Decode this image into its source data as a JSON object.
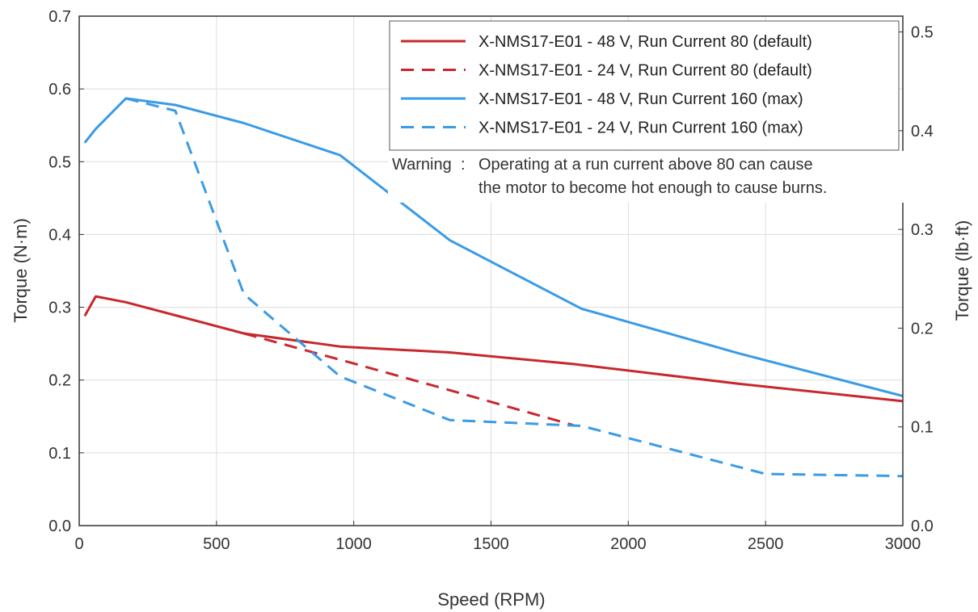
{
  "chart_data": {
    "type": "line",
    "xlabel": "Speed (RPM)",
    "ylabel": "Torque (N·m)",
    "y2label": "Torque (lb·ft)",
    "xlim": [
      0,
      3000
    ],
    "ylim": [
      0,
      0.7
    ],
    "y2lim": [
      0,
      0.516
    ],
    "xticks": [
      0,
      500,
      1000,
      1500,
      2000,
      2500,
      3000
    ],
    "yticks": [
      0.0,
      0.1,
      0.2,
      0.3,
      0.4,
      0.5,
      0.6,
      0.7
    ],
    "y2ticks": [
      0.0,
      0.1,
      0.2,
      0.3,
      0.4,
      0.5
    ],
    "grid": true,
    "legend_position": "top-right",
    "series": [
      {
        "name": "X-NMS17-E01 - 48 V, Run Current 80 (default)",
        "color": "#c8282d",
        "style": "solid",
        "x": [
          20,
          60,
          170,
          350,
          600,
          950,
          1350,
          1800,
          2400,
          3000
        ],
        "y": [
          0.288,
          0.315,
          0.307,
          0.289,
          0.264,
          0.246,
          0.238,
          0.222,
          0.195,
          0.171
        ]
      },
      {
        "name": "X-NMS17-E01 - 24 V, Run Current 80 (default)",
        "color": "#c8282d",
        "style": "dashed",
        "x": [
          600,
          950,
          1350,
          1800
        ],
        "y": [
          0.264,
          0.228,
          0.186,
          0.138
        ]
      },
      {
        "name": "X-NMS17-E01 - 48 V, Run Current 160 (max)",
        "color": "#3a9be6",
        "style": "solid",
        "x": [
          20,
          60,
          170,
          350,
          600,
          950,
          1350,
          1830,
          2400,
          3000
        ],
        "y": [
          0.526,
          0.545,
          0.587,
          0.578,
          0.553,
          0.509,
          0.392,
          0.298,
          0.237,
          0.178
        ]
      },
      {
        "name": "X-NMS17-E01 - 24 V, Run Current 160 (max)",
        "color": "#3a9be6",
        "style": "dashed",
        "x": [
          170,
          350,
          600,
          950,
          1350,
          1830,
          2500,
          3000
        ],
        "y": [
          0.587,
          0.57,
          0.318,
          0.205,
          0.145,
          0.137,
          0.071,
          0.068
        ]
      }
    ],
    "annotation": {
      "label": "Warning",
      "separator": ":",
      "line1": "Operating at a run current above 80 can cause",
      "line2": "the motor to become hot enough to cause burns."
    }
  }
}
